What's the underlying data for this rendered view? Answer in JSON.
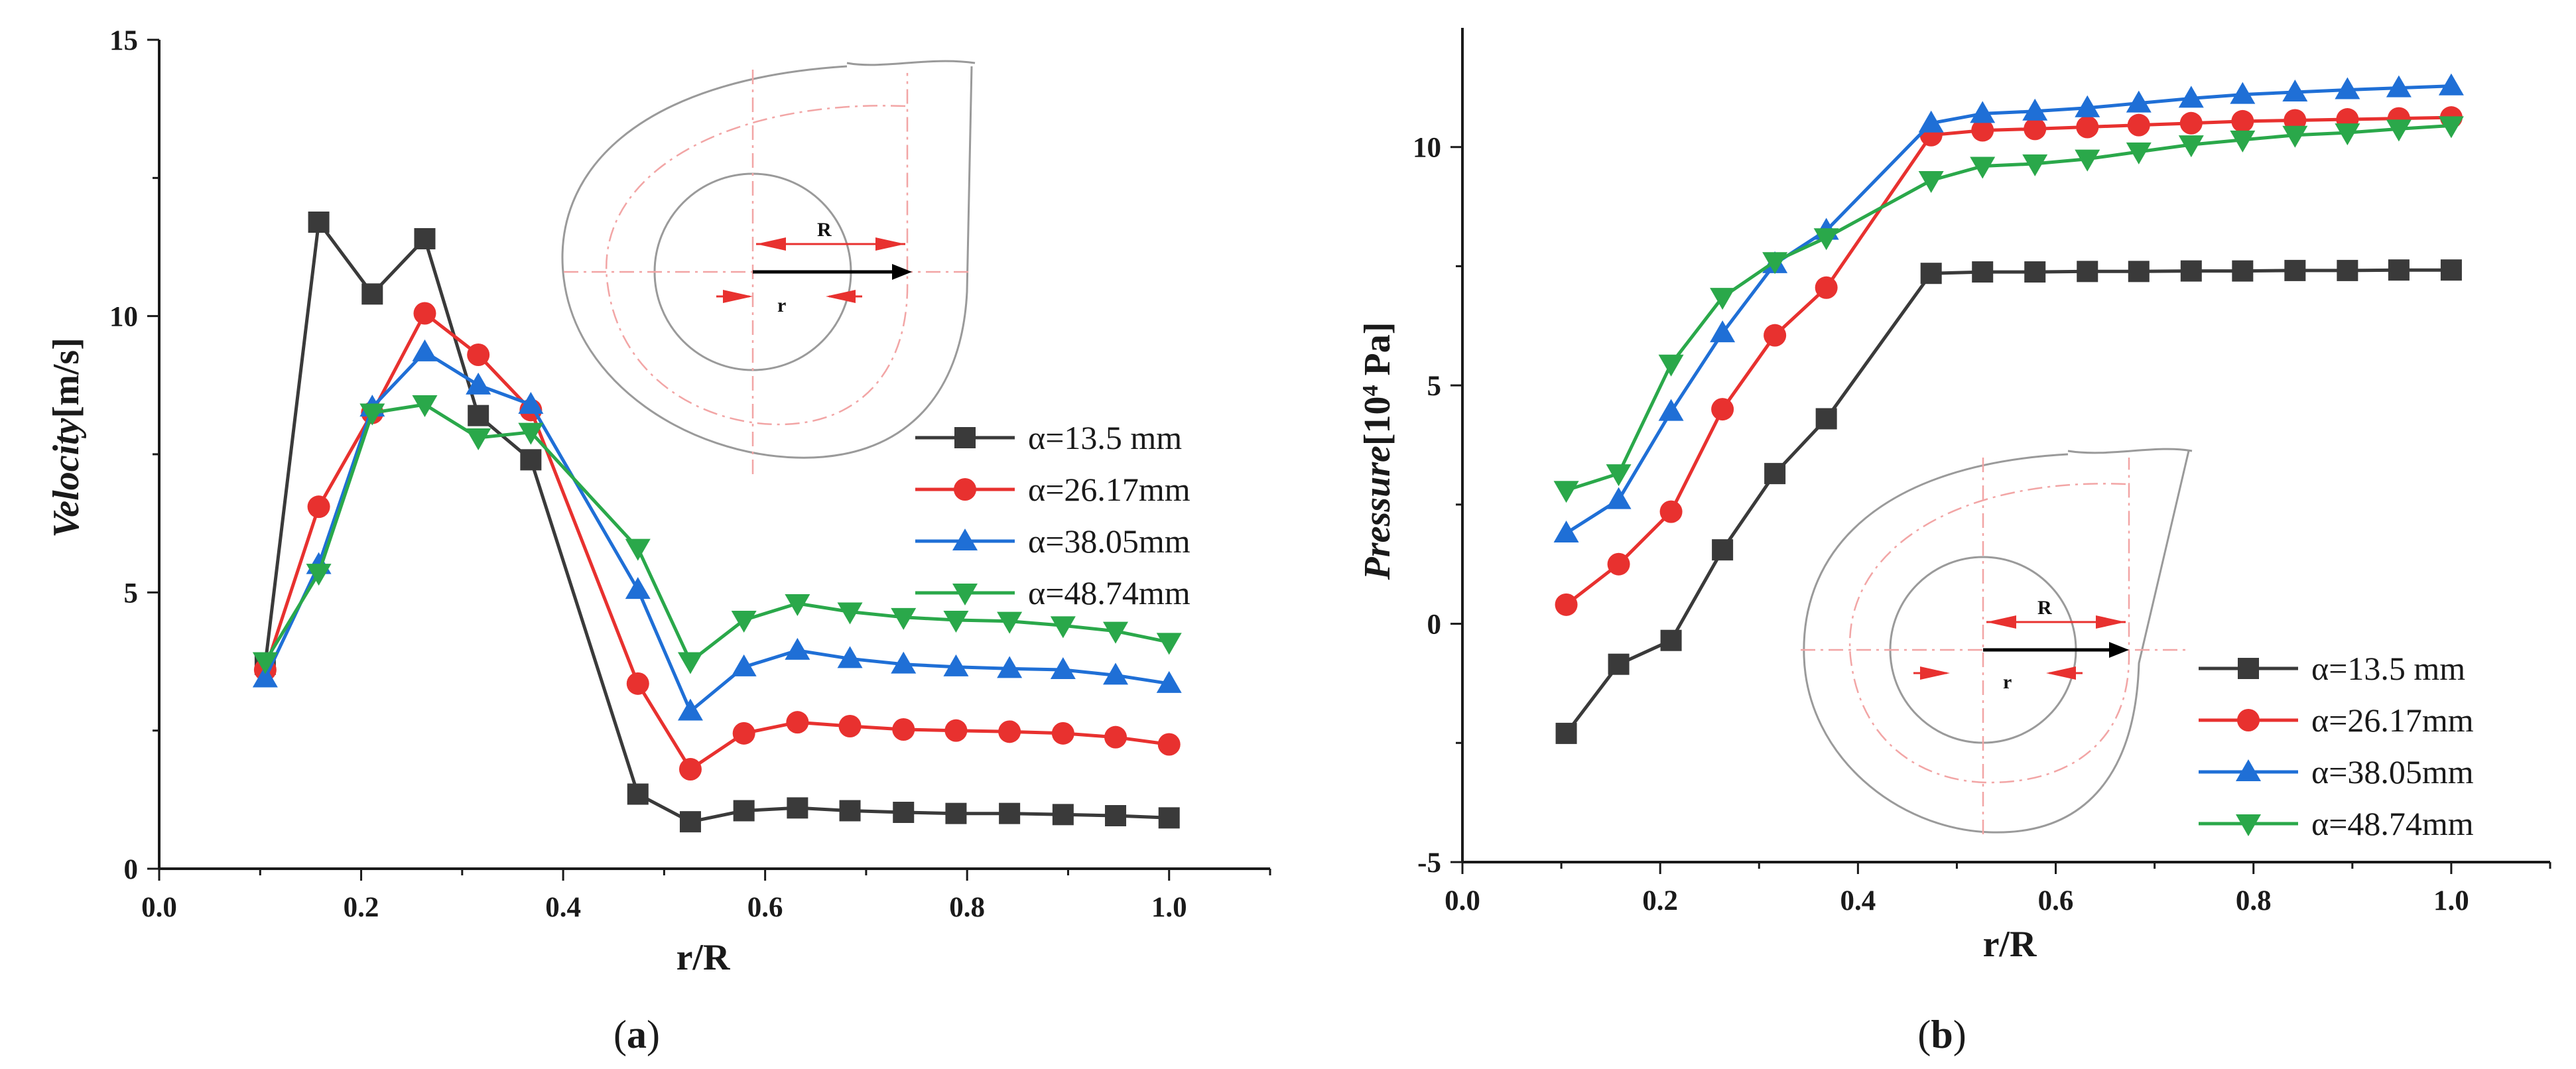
{
  "figure_labels": {
    "a": "a",
    "b": "b"
  },
  "chart_data": [
    {
      "type": "line",
      "panel": "a",
      "xlabel": "r/R",
      "ylabel_italic": "Velocity",
      "ylabel_unit": "[m/s]",
      "xlim": [
        0.0,
        1.1
      ],
      "ylim": [
        0,
        15
      ],
      "xticks": [
        "0.0",
        "0.2",
        "0.4",
        "0.6",
        "0.8",
        "1.0"
      ],
      "yticks": [
        "0",
        "5",
        "10",
        "15"
      ],
      "legend_position": "middle-right",
      "diagram_labels": {
        "R": "R",
        "r": "r"
      },
      "x": [
        0.105,
        0.158,
        0.211,
        0.263,
        0.316,
        0.368,
        0.474,
        0.526,
        0.579,
        0.632,
        0.684,
        0.737,
        0.789,
        0.842,
        0.895,
        0.947,
        1.0
      ],
      "series": [
        {
          "name": "α=13.5 mm",
          "color": "#3a3a3a",
          "marker": "square",
          "values": [
            3.7,
            11.7,
            10.4,
            11.4,
            8.2,
            7.4,
            1.35,
            0.85,
            1.05,
            1.1,
            1.05,
            1.02,
            1.0,
            1.0,
            0.98,
            0.96,
            0.92
          ]
        },
        {
          "name": "α=26.17mm",
          "color": "#e8312f",
          "marker": "circle",
          "values": [
            3.6,
            6.55,
            8.25,
            10.05,
            9.3,
            8.3,
            3.35,
            1.8,
            2.45,
            2.65,
            2.58,
            2.52,
            2.5,
            2.48,
            2.45,
            2.38,
            2.25
          ]
        },
        {
          "name": "α=38.05mm",
          "color": "#1f6fd6",
          "marker": "triangle-up",
          "values": [
            3.45,
            5.5,
            8.35,
            9.35,
            8.75,
            8.4,
            5.05,
            2.85,
            3.65,
            3.95,
            3.8,
            3.7,
            3.65,
            3.62,
            3.6,
            3.5,
            3.35
          ]
        },
        {
          "name": "α=48.74mm",
          "color": "#2aa84a",
          "marker": "triangle-down",
          "values": [
            3.75,
            5.35,
            8.25,
            8.4,
            7.8,
            7.9,
            5.8,
            3.75,
            4.5,
            4.8,
            4.65,
            4.55,
            4.5,
            4.48,
            4.4,
            4.3,
            4.1
          ]
        }
      ]
    },
    {
      "type": "line",
      "panel": "b",
      "xlabel": "r/R",
      "ylabel_italic": "Pressure",
      "ylabel_unit_pre": "[10",
      "ylabel_unit_sup": "4",
      "ylabel_unit_post": " Pa]",
      "xlim": [
        0.0,
        1.1
      ],
      "ylim": [
        -5,
        12.5
      ],
      "xticks": [
        "0.0",
        "0.2",
        "0.4",
        "0.6",
        "0.8",
        "1.0"
      ],
      "yticks": [
        "-5",
        "0",
        "5",
        "10"
      ],
      "legend_position": "bottom-right",
      "diagram_labels": {
        "R": "R",
        "r": "r"
      },
      "x": [
        0.105,
        0.158,
        0.211,
        0.263,
        0.316,
        0.368,
        0.474,
        0.526,
        0.579,
        0.632,
        0.684,
        0.737,
        0.789,
        0.842,
        0.895,
        0.947,
        1.0
      ],
      "series": [
        {
          "name": "α=13.5  mm",
          "color": "#3a3a3a",
          "marker": "square",
          "values": [
            -2.3,
            -0.85,
            -0.35,
            1.55,
            3.15,
            4.3,
            7.35,
            7.38,
            7.38,
            7.39,
            7.39,
            7.4,
            7.4,
            7.41,
            7.41,
            7.42,
            7.42
          ]
        },
        {
          "name": "α=26.17mm",
          "color": "#e8312f",
          "marker": "circle",
          "values": [
            0.4,
            1.25,
            2.35,
            4.5,
            6.05,
            7.05,
            10.25,
            10.35,
            10.38,
            10.42,
            10.46,
            10.5,
            10.54,
            10.56,
            10.58,
            10.6,
            10.62
          ]
        },
        {
          "name": "α=38.05mm",
          "color": "#1f6fd6",
          "marker": "triangle-up",
          "values": [
            1.9,
            2.6,
            4.45,
            6.1,
            7.55,
            8.25,
            10.5,
            10.7,
            10.75,
            10.82,
            10.92,
            11.02,
            11.1,
            11.15,
            11.2,
            11.24,
            11.28
          ]
        },
        {
          "name": "α=48.74mm",
          "color": "#2aa84a",
          "marker": "triangle-down",
          "values": [
            2.8,
            3.15,
            5.45,
            6.85,
            7.6,
            8.1,
            9.3,
            9.6,
            9.65,
            9.75,
            9.9,
            10.05,
            10.15,
            10.25,
            10.3,
            10.38,
            10.45
          ]
        }
      ]
    }
  ]
}
